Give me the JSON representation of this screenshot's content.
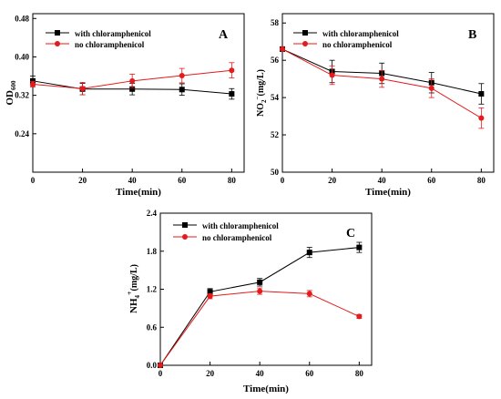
{
  "colors": {
    "with": "#000000",
    "no": "#e41a1c",
    "axis": "#000000"
  },
  "legend_labels": {
    "with": "with chloramphenicol",
    "no": "no chloramphenicol"
  },
  "chart_data": [
    {
      "type": "line",
      "panel_label": "A",
      "xlabel": "Time(min)",
      "ylabel_main": "OD",
      "ylabel_sub": "600",
      "ylabel_sup": "",
      "ylabel_tail": "",
      "xlim": [
        0,
        85
      ],
      "ylim": [
        0.16,
        0.49
      ],
      "xticks": [
        0,
        20,
        40,
        60,
        80
      ],
      "yticks": [
        0.24,
        0.32,
        0.4,
        0.48
      ],
      "ytick_labels": [
        "0.24",
        "0.32",
        "0.40",
        "0.48"
      ],
      "x": [
        0,
        20,
        40,
        60,
        80
      ],
      "legend": "top-left",
      "series": [
        {
          "name": "with chloramphenicol",
          "key": "with",
          "marker": "square",
          "values": [
            0.35,
            0.333,
            0.333,
            0.332,
            0.323
          ],
          "errors": [
            0.01,
            0.012,
            0.012,
            0.012,
            0.011
          ]
        },
        {
          "name": "no chloramphenicol",
          "key": "no",
          "marker": "circle",
          "values": [
            0.343,
            0.334,
            0.35,
            0.361,
            0.372
          ],
          "errors": [
            0.006,
            0.013,
            0.014,
            0.015,
            0.016
          ]
        }
      ]
    },
    {
      "type": "line",
      "panel_label": "B",
      "xlabel": "Time(min)",
      "ylabel_main": "NO",
      "ylabel_sub": "2",
      "ylabel_sup": "−",
      "ylabel_tail": "(mg/L)",
      "xlim": [
        0,
        85
      ],
      "ylim": [
        50,
        58.5
      ],
      "xticks": [
        0,
        20,
        40,
        60,
        80
      ],
      "yticks": [
        50,
        52,
        54,
        56,
        58
      ],
      "ytick_labels": [
        "50",
        "52",
        "54",
        "56",
        "58"
      ],
      "x": [
        0,
        20,
        40,
        60,
        80
      ],
      "legend": "top-left",
      "series": [
        {
          "name": "with chloramphenicol",
          "key": "with",
          "marker": "square",
          "values": [
            56.6,
            55.4,
            55.3,
            54.8,
            54.2
          ],
          "errors": [
            0.05,
            0.6,
            0.55,
            0.55,
            0.55
          ]
        },
        {
          "name": "no chloramphenicol",
          "key": "no",
          "marker": "circle",
          "values": [
            56.6,
            55.2,
            55.0,
            54.5,
            52.9
          ],
          "errors": [
            0.05,
            0.5,
            0.45,
            0.5,
            0.55
          ]
        }
      ]
    },
    {
      "type": "line",
      "panel_label": "C",
      "xlabel": "Time(min)",
      "ylabel_main": "NH",
      "ylabel_sub": "4",
      "ylabel_sup": "+",
      "ylabel_tail": "(mg/L)",
      "xlim": [
        0,
        85
      ],
      "ylim": [
        0,
        2.4
      ],
      "xticks": [
        0,
        20,
        40,
        60,
        80
      ],
      "yticks": [
        0.0,
        0.6,
        1.2,
        1.8,
        2.4
      ],
      "ytick_labels": [
        "0.0",
        "0.6",
        "1.2",
        "1.8",
        "2.4"
      ],
      "x": [
        0,
        20,
        40,
        60,
        80
      ],
      "legend": "top-left",
      "series": [
        {
          "name": "with chloramphenicol",
          "key": "with",
          "marker": "square",
          "values": [
            0.0,
            1.16,
            1.31,
            1.78,
            1.86
          ],
          "errors": [
            0,
            0.05,
            0.06,
            0.08,
            0.08
          ]
        },
        {
          "name": "no chloramphenicol",
          "key": "no",
          "marker": "circle",
          "values": [
            0.0,
            1.09,
            1.17,
            1.13,
            0.77
          ],
          "errors": [
            0,
            0.04,
            0.05,
            0.05,
            0.03
          ]
        }
      ]
    }
  ]
}
